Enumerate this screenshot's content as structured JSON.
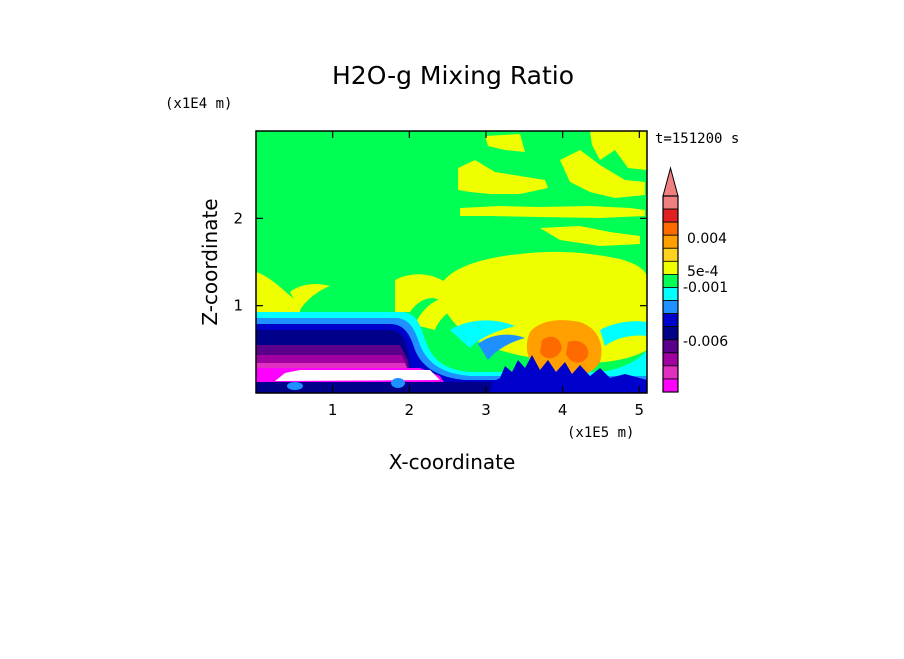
{
  "chart_data": {
    "type": "heatmap",
    "title": "H2O-g Mixing Ratio",
    "xlabel": "X-coordinate",
    "ylabel": "Z-coordinate",
    "x_scale_label": "(x1E5 m)",
    "y_scale_label": "(x1E4 m)",
    "time_label": "t=151200 s",
    "xlim": [
      0,
      5.1
    ],
    "ylim": [
      0,
      3.0
    ],
    "x_ticks": [
      "1",
      "2",
      "3",
      "4",
      "5"
    ],
    "x_tick_values": [
      1,
      2,
      3,
      4,
      5
    ],
    "y_ticks": [
      "1",
      "2"
    ],
    "y_tick_values": [
      1,
      2
    ],
    "colorbar": {
      "labels": [
        "0.004",
        "5e-4",
        "-0.001",
        "-0.006"
      ],
      "colors_top_to_bottom": [
        "#f08080",
        "#e02020",
        "#ff6a00",
        "#ffa000",
        "#ffd21e",
        "#f0ff00",
        "#00ff55",
        "#00ffff",
        "#1e90ff",
        "#0000cd",
        "#00008b",
        "#5a008b",
        "#a000a0",
        "#e030c0",
        "#ff00ff"
      ]
    },
    "colors": {
      "green": "#00ff55",
      "yellow": "#f0ff00",
      "cyan": "#00ffff",
      "light_blue": "#1e90ff",
      "blue": "#0000cd",
      "navy": "#00008b",
      "purple": "#5a008b",
      "violet": "#a000a0",
      "pink": "#e030c0",
      "magenta": "#ff00ff",
      "orange": "#ffa000",
      "dark_orange": "#ff6a00",
      "white": "#ffffff"
    }
  }
}
